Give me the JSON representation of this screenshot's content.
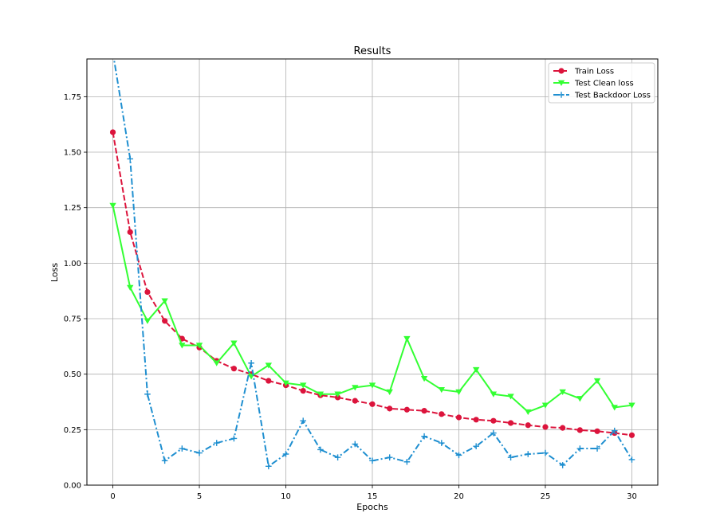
{
  "chart_data": {
    "type": "line",
    "title": "Results",
    "xlabel": "Epochs",
    "ylabel": "Loss",
    "xlim": [
      -1.5,
      31.5
    ],
    "ylim": [
      0,
      1.92
    ],
    "xticks": [
      0,
      5,
      10,
      15,
      20,
      25,
      30
    ],
    "yticks": [
      0.0,
      0.25,
      0.5,
      0.75,
      1.0,
      1.25,
      1.5,
      1.75
    ],
    "xtick_labels": [
      "0",
      "5",
      "10",
      "15",
      "20",
      "25",
      "30"
    ],
    "ytick_labels": [
      "0.00",
      "0.25",
      "0.50",
      "0.75",
      "1.00",
      "1.25",
      "1.50",
      "1.75"
    ],
    "grid": true,
    "legend_position": "top-right",
    "x": [
      0,
      1,
      2,
      3,
      4,
      5,
      6,
      7,
      8,
      9,
      10,
      11,
      12,
      13,
      14,
      15,
      16,
      17,
      18,
      19,
      20,
      21,
      22,
      23,
      24,
      25,
      26,
      27,
      28,
      29,
      30
    ],
    "series": [
      {
        "name": "Train Loss",
        "color": "#dc143c",
        "marker": "circle",
        "line_style": "dashed",
        "values": [
          1.59,
          1.14,
          0.87,
          0.74,
          0.66,
          0.62,
          0.56,
          0.525,
          0.5,
          0.47,
          0.45,
          0.425,
          0.405,
          0.395,
          0.38,
          0.365,
          0.345,
          0.34,
          0.335,
          0.32,
          0.305,
          0.295,
          0.29,
          0.28,
          0.27,
          0.262,
          0.258,
          0.248,
          0.243,
          0.235,
          0.225
        ]
      },
      {
        "name": "Test Clean loss",
        "color": "#33ff33",
        "marker": "triangle-down",
        "line_style": "solid",
        "values": [
          1.26,
          0.89,
          0.74,
          0.83,
          0.63,
          0.63,
          0.55,
          0.64,
          0.49,
          0.54,
          0.46,
          0.45,
          0.41,
          0.41,
          0.44,
          0.45,
          0.42,
          0.66,
          0.48,
          0.43,
          0.42,
          0.52,
          0.41,
          0.4,
          0.33,
          0.36,
          0.42,
          0.39,
          0.47,
          0.35,
          0.36
        ]
      },
      {
        "name": "Test Backdoor Loss",
        "color": "#1f8fd0",
        "marker": "plus",
        "line_style": "dashdot",
        "values": [
          1.95,
          1.47,
          0.41,
          0.11,
          0.165,
          0.145,
          0.19,
          0.21,
          0.55,
          0.085,
          0.14,
          0.29,
          0.16,
          0.125,
          0.185,
          0.11,
          0.125,
          0.105,
          0.22,
          0.19,
          0.135,
          0.175,
          0.235,
          0.125,
          0.14,
          0.145,
          0.09,
          0.165,
          0.165,
          0.245,
          0.115
        ]
      }
    ]
  }
}
